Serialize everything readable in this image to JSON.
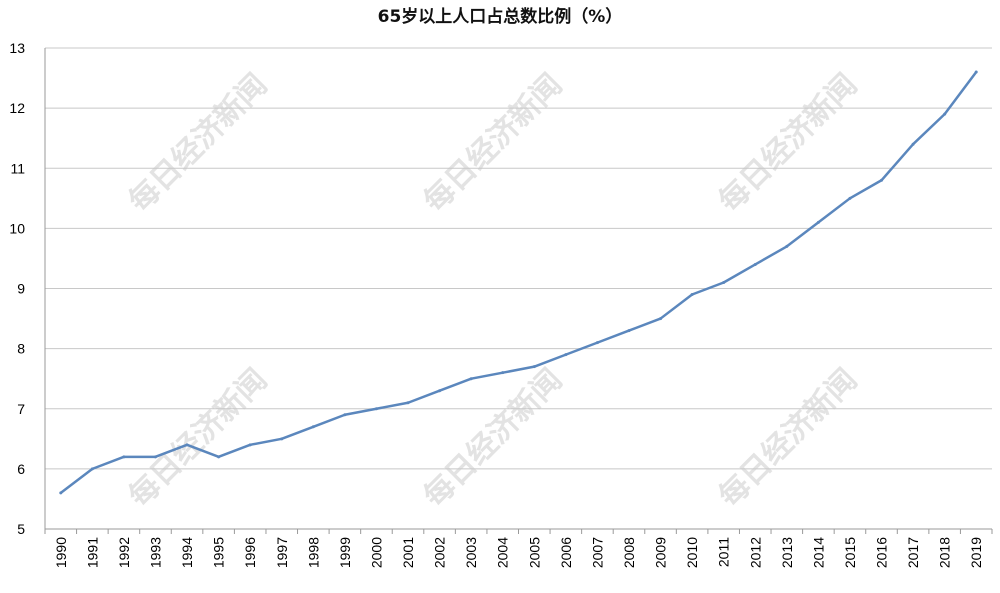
{
  "chart_data": {
    "type": "line",
    "title": "65岁以上人口占总数比例（%）",
    "xlabel": "",
    "ylabel": "",
    "x": [
      "1990",
      "1991",
      "1992",
      "1993",
      "1994",
      "1995",
      "1996",
      "1997",
      "1998",
      "1999",
      "2000",
      "2001",
      "2002",
      "2003",
      "2004",
      "2005",
      "2006",
      "2007",
      "2008",
      "2009",
      "2010",
      "2011",
      "2012",
      "2013",
      "2014",
      "2015",
      "2016",
      "2017",
      "2018",
      "2019"
    ],
    "series": [
      {
        "values": [
          5.6,
          6.0,
          6.2,
          6.2,
          6.4,
          6.2,
          6.4,
          6.5,
          6.7,
          6.9,
          7.0,
          7.1,
          7.3,
          7.5,
          7.6,
          7.7,
          7.9,
          8.1,
          8.3,
          8.5,
          8.9,
          9.1,
          9.4,
          9.7,
          10.1,
          10.5,
          10.8,
          11.4,
          11.9,
          12.6
        ],
        "color": "#5b87bd"
      }
    ],
    "ylim": [
      5,
      13
    ],
    "yticks": [
      5,
      6,
      7,
      8,
      9,
      10,
      11,
      12,
      13
    ],
    "grid": true,
    "legend": "none"
  },
  "watermark": {
    "text": "每日经济新闻"
  },
  "colors": {
    "grid": "#c8c8c8",
    "axis": "#9a9a9a",
    "line": "#5b87bd",
    "watermark": "#e3e3e3"
  }
}
